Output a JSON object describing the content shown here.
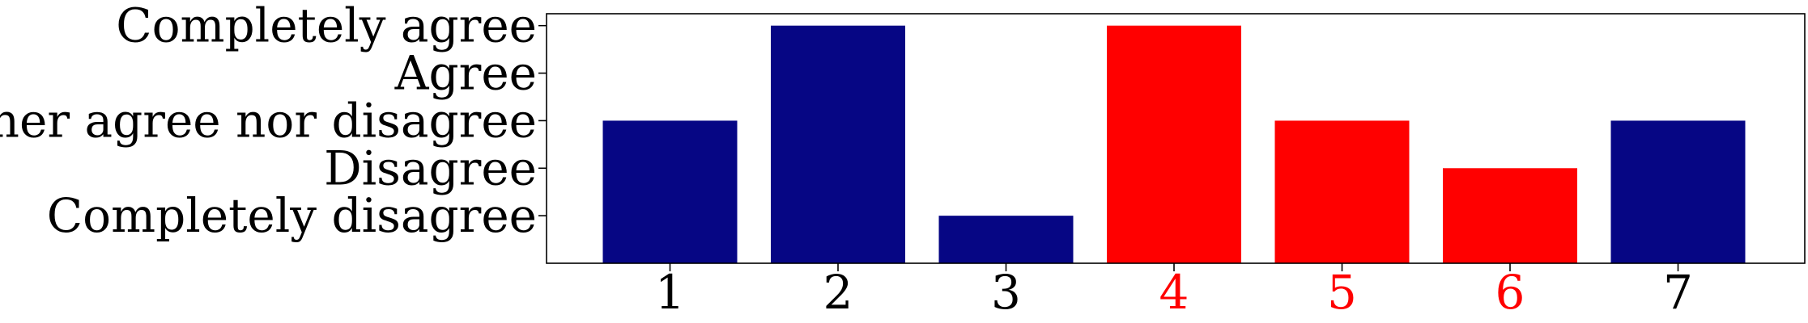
{
  "chart_data": {
    "type": "bar",
    "categories": [
      "1",
      "2",
      "3",
      "4",
      "5",
      "6",
      "7"
    ],
    "values": [
      3,
      5,
      1,
      5,
      3,
      2,
      3
    ],
    "bar_colors": [
      "#060684",
      "#060684",
      "#060684",
      "#ff0000",
      "#ff0000",
      "#ff0000",
      "#060684"
    ],
    "xtick_colors": [
      "#000000",
      "#000000",
      "#000000",
      "#ff0000",
      "#ff0000",
      "#ff0000",
      "#000000"
    ],
    "yticks": [
      1,
      2,
      3,
      4,
      5
    ],
    "ytick_labels": [
      "Completely disagree",
      "Disagree",
      "Neither agree nor disagree",
      "Agree",
      "Completely agree"
    ],
    "ylim": [
      0,
      5.25
    ],
    "title": "",
    "xlabel": "",
    "ylabel": "",
    "grid": false,
    "legend": "none"
  }
}
